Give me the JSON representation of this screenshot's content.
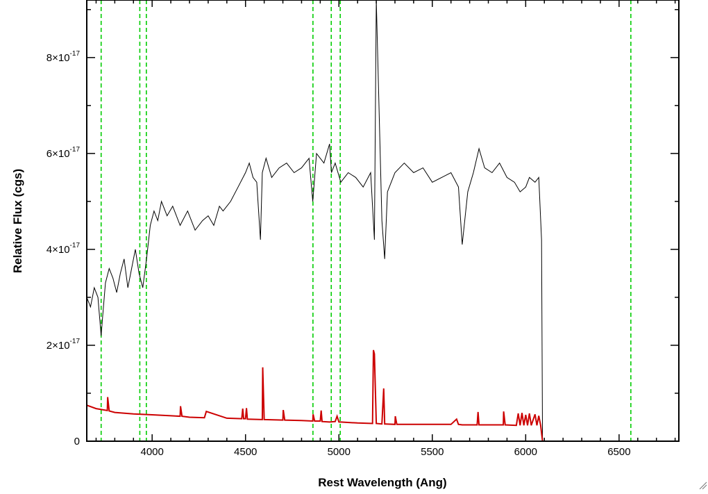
{
  "chart_data": {
    "type": "line",
    "xlabel": "Rest Wavelength (Ang)",
    "ylabel": "Relative Flux (cgs)",
    "xlim": [
      3650,
      6820
    ],
    "ylim": [
      0,
      9.2e-17
    ],
    "xticks": [
      4000,
      4500,
      5000,
      5500,
      6000,
      6500
    ],
    "xtick_labels": [
      "4000",
      "4500",
      "5000",
      "5500",
      "6000",
      "6500"
    ],
    "yticks": [
      0,
      2e-17,
      4e-17,
      6e-17,
      8e-17
    ],
    "ytick_labels": [
      {
        "mantissa": "0",
        "exponent": ""
      },
      {
        "mantissa": "2×10",
        "exponent": "-17"
      },
      {
        "mantissa": "4×10",
        "exponent": "-17"
      },
      {
        "mantissa": "6×10",
        "exponent": "-17"
      },
      {
        "mantissa": "8×10",
        "exponent": "-17"
      }
    ],
    "grid": false,
    "colors": {
      "flux": "#000000",
      "error": "#cc0000",
      "line_markers": "#00cc00",
      "axes": "#000000"
    },
    "reference_lines_x": [
      3727,
      3934,
      3969,
      4861,
      4959,
      5007,
      6563
    ],
    "series": [
      {
        "role": "flux",
        "x": [
          3650,
          3670,
          3690,
          3710,
          3727,
          3735,
          3750,
          3770,
          3790,
          3810,
          3830,
          3850,
          3870,
          3890,
          3910,
          3930,
          3950,
          3970,
          3990,
          4010,
          4030,
          4050,
          4080,
          4110,
          4150,
          4190,
          4230,
          4270,
          4300,
          4330,
          4360,
          4380,
          4420,
          4460,
          4500,
          4520,
          4540,
          4560,
          4580,
          4590,
          4610,
          4640,
          4680,
          4720,
          4760,
          4800,
          4840,
          4860,
          4880,
          4920,
          4950,
          4960,
          4980,
          5010,
          5050,
          5090,
          5130,
          5170,
          5190,
          5200,
          5230,
          5245,
          5260,
          5300,
          5350,
          5400,
          5450,
          5500,
          5550,
          5600,
          5640,
          5660,
          5690,
          5720,
          5750,
          5780,
          5820,
          5860,
          5900,
          5940,
          5970,
          6000,
          6020,
          6050,
          6070,
          6085,
          6090,
          6150,
          6300,
          6500,
          6700,
          6820
        ],
        "y": [
          3e-17,
          2.8e-17,
          3.2e-17,
          3e-17,
          2.2e-17,
          2.6e-17,
          3.3e-17,
          3.6e-17,
          3.4e-17,
          3.1e-17,
          3.5e-17,
          3.8e-17,
          3.2e-17,
          3.6e-17,
          4e-17,
          3.5e-17,
          3.2e-17,
          3.8e-17,
          4.5e-17,
          4.8e-17,
          4.6e-17,
          5e-17,
          4.7e-17,
          4.9e-17,
          4.5e-17,
          4.8e-17,
          4.4e-17,
          4.6e-17,
          4.7e-17,
          4.5e-17,
          4.9e-17,
          4.8e-17,
          5e-17,
          5.3e-17,
          5.6e-17,
          5.8e-17,
          5.5e-17,
          5.4e-17,
          4.2e-17,
          5.6e-17,
          5.9e-17,
          5.5e-17,
          5.7e-17,
          5.8e-17,
          5.6e-17,
          5.7e-17,
          5.9e-17,
          5e-17,
          6e-17,
          5.8e-17,
          6.2e-17,
          5.6e-17,
          5.8e-17,
          5.4e-17,
          5.6e-17,
          5.5e-17,
          5.3e-17,
          5.6e-17,
          4.2e-17,
          9.2e-17,
          4.6e-17,
          3.8e-17,
          5.2e-17,
          5.6e-17,
          5.8e-17,
          5.6e-17,
          5.7e-17,
          5.4e-17,
          5.5e-17,
          5.6e-17,
          5.3e-17,
          4.1e-17,
          5.2e-17,
          5.6e-17,
          6.1e-17,
          5.7e-17,
          5.6e-17,
          5.8e-17,
          5.5e-17,
          5.4e-17,
          5.2e-17,
          5.3e-17,
          5.5e-17,
          5.4e-17,
          5.5e-17,
          4.2e-17,
          0,
          0,
          0,
          0,
          0,
          0
        ]
      },
      {
        "role": "error",
        "x": [
          3650,
          3700,
          3760,
          3762,
          3770,
          3800,
          3900,
          4000,
          4100,
          4150,
          4152,
          4160,
          4200,
          4280,
          4290,
          4400,
          4480,
          4485,
          4490,
          4500,
          4505,
          4510,
          4590,
          4592,
          4600,
          4700,
          4702,
          4710,
          4800,
          4860,
          4862,
          4870,
          4900,
          4905,
          4910,
          4950,
          4980,
          4990,
          5000,
          5010,
          5100,
          5180,
          5185,
          5190,
          5200,
          5230,
          5240,
          5245,
          5250,
          5300,
          5302,
          5310,
          5400,
          5500,
          5600,
          5630,
          5640,
          5660,
          5740,
          5745,
          5750,
          5800,
          5880,
          5882,
          5890,
          5950,
          5960,
          5970,
          5980,
          5990,
          6000,
          6010,
          6020,
          6030,
          6050,
          6060,
          6070,
          6080,
          6090,
          6100,
          6300,
          6500,
          6700,
          6820
        ],
        "y": [
          7.5e-18,
          6.8e-18,
          6.4e-18,
          9.2e-18,
          6.3e-18,
          6e-18,
          5.7e-18,
          5.5e-18,
          5.3e-18,
          5.2e-18,
          7.3e-18,
          5.2e-18,
          5e-18,
          4.9e-18,
          6.2e-18,
          4.8e-18,
          4.7e-18,
          6.8e-18,
          4.7e-18,
          4.7e-18,
          6.9e-18,
          4.6e-18,
          4.5e-18,
          1.54e-17,
          4.5e-18,
          4.4e-18,
          6.5e-18,
          4.4e-18,
          4.3e-18,
          4.2e-18,
          5.6e-18,
          4.2e-18,
          4.2e-18,
          6.4e-18,
          4.1e-18,
          4e-18,
          4.1e-18,
          5.2e-18,
          4e-18,
          4e-18,
          3.8e-18,
          3.7e-18,
          1.9e-17,
          1.82e-17,
          3.7e-18,
          3.6e-18,
          1.1e-17,
          3.6e-18,
          3.6e-18,
          3.5e-18,
          5.2e-18,
          3.5e-18,
          3.5e-18,
          3.5e-18,
          3.5e-18,
          4.6e-18,
          3.5e-18,
          3.4e-18,
          3.4e-18,
          6.1e-18,
          3.4e-18,
          3.4e-18,
          3.4e-18,
          6.2e-18,
          3.4e-18,
          3.3e-18,
          5.8e-18,
          3.3e-18,
          5.9e-18,
          3.3e-18,
          5.5e-18,
          3.3e-18,
          5.8e-18,
          3.3e-18,
          5.6e-18,
          3.3e-18,
          5.3e-18,
          3.3e-18,
          0,
          0,
          0,
          0,
          0,
          0
        ]
      }
    ]
  }
}
